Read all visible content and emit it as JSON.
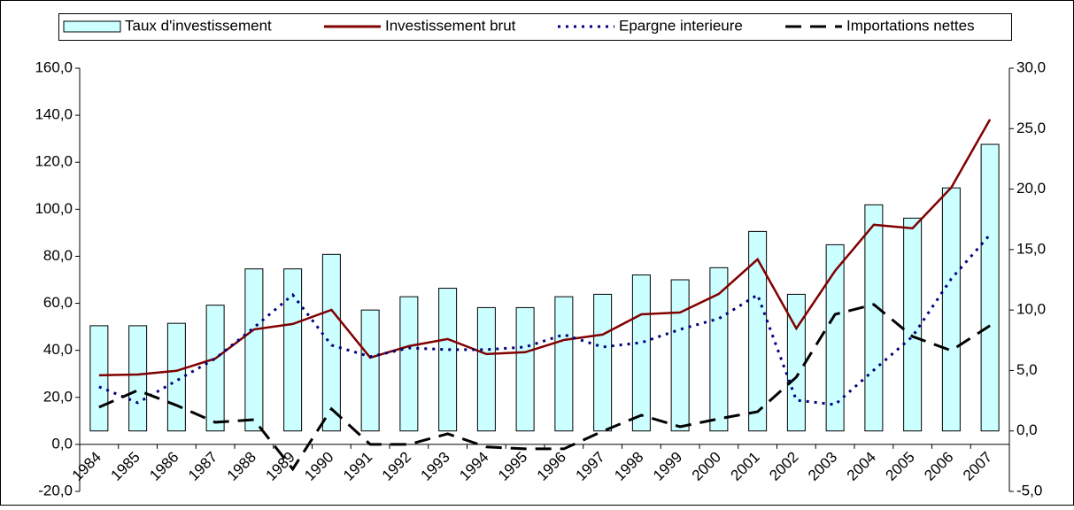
{
  "chart_data": {
    "type": "bar-line",
    "categories": [
      "1984",
      "1985",
      "1986",
      "1987",
      "1988",
      "1989",
      "1990",
      "1991",
      "1992",
      "1993",
      "1994",
      "1995",
      "1996",
      "1997",
      "1998",
      "1999",
      "2000",
      "2001",
      "2002",
      "2003",
      "2004",
      "2005",
      "2006",
      "2007"
    ],
    "series": [
      {
        "name": "Taux d'investissement",
        "type": "bar",
        "axis": "y2",
        "color": "#ccffff",
        "values": [
          8.7,
          8.7,
          8.9,
          10.4,
          13.4,
          13.4,
          14.6,
          10.0,
          11.1,
          11.8,
          10.2,
          10.2,
          11.1,
          11.3,
          12.9,
          12.5,
          13.5,
          16.5,
          11.3,
          15.4,
          18.7,
          17.6,
          20.1,
          23.7
        ]
      },
      {
        "name": "Investissement brut",
        "type": "line",
        "style": "solid",
        "color": "#800000",
        "values": [
          29.4,
          29.7,
          31.3,
          36.5,
          48.9,
          51.2,
          57.2,
          36.9,
          41.8,
          44.8,
          38.4,
          39.2,
          44.4,
          46.7,
          55.3,
          56.1,
          64.0,
          78.7,
          49.3,
          73.8,
          93.4,
          91.9,
          109.2,
          138.2
        ]
      },
      {
        "name": "Epargne interieure",
        "type": "line",
        "style": "dotted",
        "color": "#000080",
        "values": [
          24.5,
          17.7,
          27.1,
          36.5,
          49.7,
          63.6,
          42.2,
          37.3,
          41.0,
          40.3,
          40.3,
          41.4,
          46.7,
          41.4,
          43.3,
          48.9,
          53.5,
          63.6,
          18.8,
          16.9,
          31.6,
          45.9,
          70.4,
          89.2
        ]
      },
      {
        "name": "Importations nettes",
        "type": "line",
        "style": "dashed",
        "color": "#000000",
        "values": [
          15.8,
          23.0,
          16.6,
          9.4,
          10.5,
          -10.5,
          15.1,
          0.0,
          0.0,
          4.5,
          -1.1,
          -1.9,
          -1.9,
          5.6,
          12.4,
          7.5,
          10.9,
          13.9,
          28.6,
          55.3,
          59.5,
          45.9,
          39.9,
          50.5
        ]
      }
    ],
    "ylim": [
      -20,
      160
    ],
    "yticks": [
      {
        "value": -20,
        "label": "-20,0"
      },
      {
        "value": 0,
        "label": "0,0"
      },
      {
        "value": 20,
        "label": "20,0"
      },
      {
        "value": 40,
        "label": "40,0"
      },
      {
        "value": 60,
        "label": "60,0"
      },
      {
        "value": 80,
        "label": "80,0"
      },
      {
        "value": 100,
        "label": "100,0"
      },
      {
        "value": 120,
        "label": "120,0"
      },
      {
        "value": 140,
        "label": "140,0"
      },
      {
        "value": 160,
        "label": "160,0"
      }
    ],
    "y2lim": [
      -5,
      30
    ],
    "y2ticks": [
      {
        "value": -5,
        "label": "-5,0"
      },
      {
        "value": 0,
        "label": "0,0"
      },
      {
        "value": 5,
        "label": "5,0"
      },
      {
        "value": 10,
        "label": "10,0"
      },
      {
        "value": 15,
        "label": "15,0"
      },
      {
        "value": 20,
        "label": "20,0"
      },
      {
        "value": 25,
        "label": "25,0"
      },
      {
        "value": 30,
        "label": "30,0"
      }
    ],
    "grid": false,
    "legend": "top"
  }
}
